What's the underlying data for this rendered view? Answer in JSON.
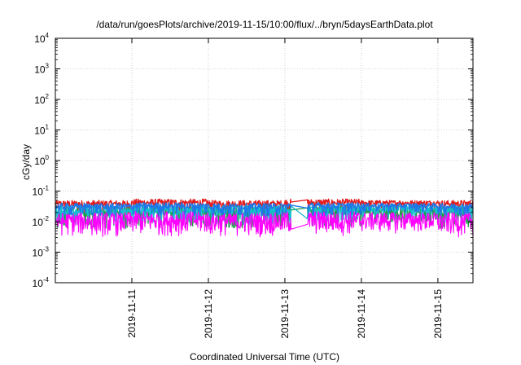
{
  "chart_data": {
    "type": "line",
    "title": "/data/run/goesPlots/archive/2019-11-15/10:00/flux/../bryn/5daysEarthData.plot",
    "xlabel": "Coordinated Universal Time (UTC)",
    "ylabel": "cGy/day",
    "yscale": "log",
    "ylim": [
      0.0001,
      10000
    ],
    "xlim": [
      "2019-11-10 00:00",
      "2019-11-15 11:00"
    ],
    "y_ticks": [
      {
        "base": "10",
        "exp": "-4"
      },
      {
        "base": "10",
        "exp": "-3"
      },
      {
        "base": "10",
        "exp": "-2"
      },
      {
        "base": "10",
        "exp": "-1"
      },
      {
        "base": "10",
        "exp": "0"
      },
      {
        "base": "10",
        "exp": "1"
      },
      {
        "base": "10",
        "exp": "2"
      },
      {
        "base": "10",
        "exp": "3"
      },
      {
        "base": "10",
        "exp": "4"
      }
    ],
    "x_ticks": [
      "2019-11-11",
      "2019-11-12",
      "2019-11-13",
      "2019-11-14",
      "2019-11-15"
    ],
    "grid": true,
    "legend": "none",
    "data_gap": [
      "2019-11-13 02:00",
      "2019-11-13 07:00"
    ],
    "series": [
      {
        "color": "#e41a1c",
        "values": [
          [
            0.018,
            0.05
          ],
          [
            0.02,
            0.055
          ],
          [
            0.018,
            0.05
          ],
          [
            0.02,
            0.055
          ],
          [
            0.025,
            0.05
          ],
          [
            0.02,
            0.05
          ]
        ]
      },
      {
        "color": "#1f9e4a",
        "values": [
          [
            0.006,
            0.03
          ],
          [
            0.007,
            0.032
          ],
          [
            0.006,
            0.03
          ],
          [
            0.007,
            0.032
          ],
          [
            0.009,
            0.03
          ],
          [
            0.006,
            0.03
          ]
        ]
      },
      {
        "color": "#17becf",
        "values": [
          [
            0.008,
            0.035
          ],
          [
            0.009,
            0.036
          ],
          [
            0.008,
            0.034
          ],
          [
            0.009,
            0.035
          ],
          [
            0.012,
            0.034
          ],
          [
            0.008,
            0.034
          ]
        ]
      },
      {
        "color": "#ff00ff",
        "values": [
          [
            0.003,
            0.02
          ],
          [
            0.0032,
            0.022
          ],
          [
            0.003,
            0.02
          ],
          [
            0.0032,
            0.022
          ],
          [
            0.004,
            0.02
          ],
          [
            0.003,
            0.02
          ]
        ]
      },
      {
        "color": "#1e78e6",
        "values": [
          [
            0.015,
            0.04
          ],
          [
            0.016,
            0.042
          ],
          [
            0.015,
            0.04
          ],
          [
            0.016,
            0.042
          ],
          [
            0.02,
            0.04
          ],
          [
            0.016,
            0.04
          ]
        ]
      }
    ]
  }
}
